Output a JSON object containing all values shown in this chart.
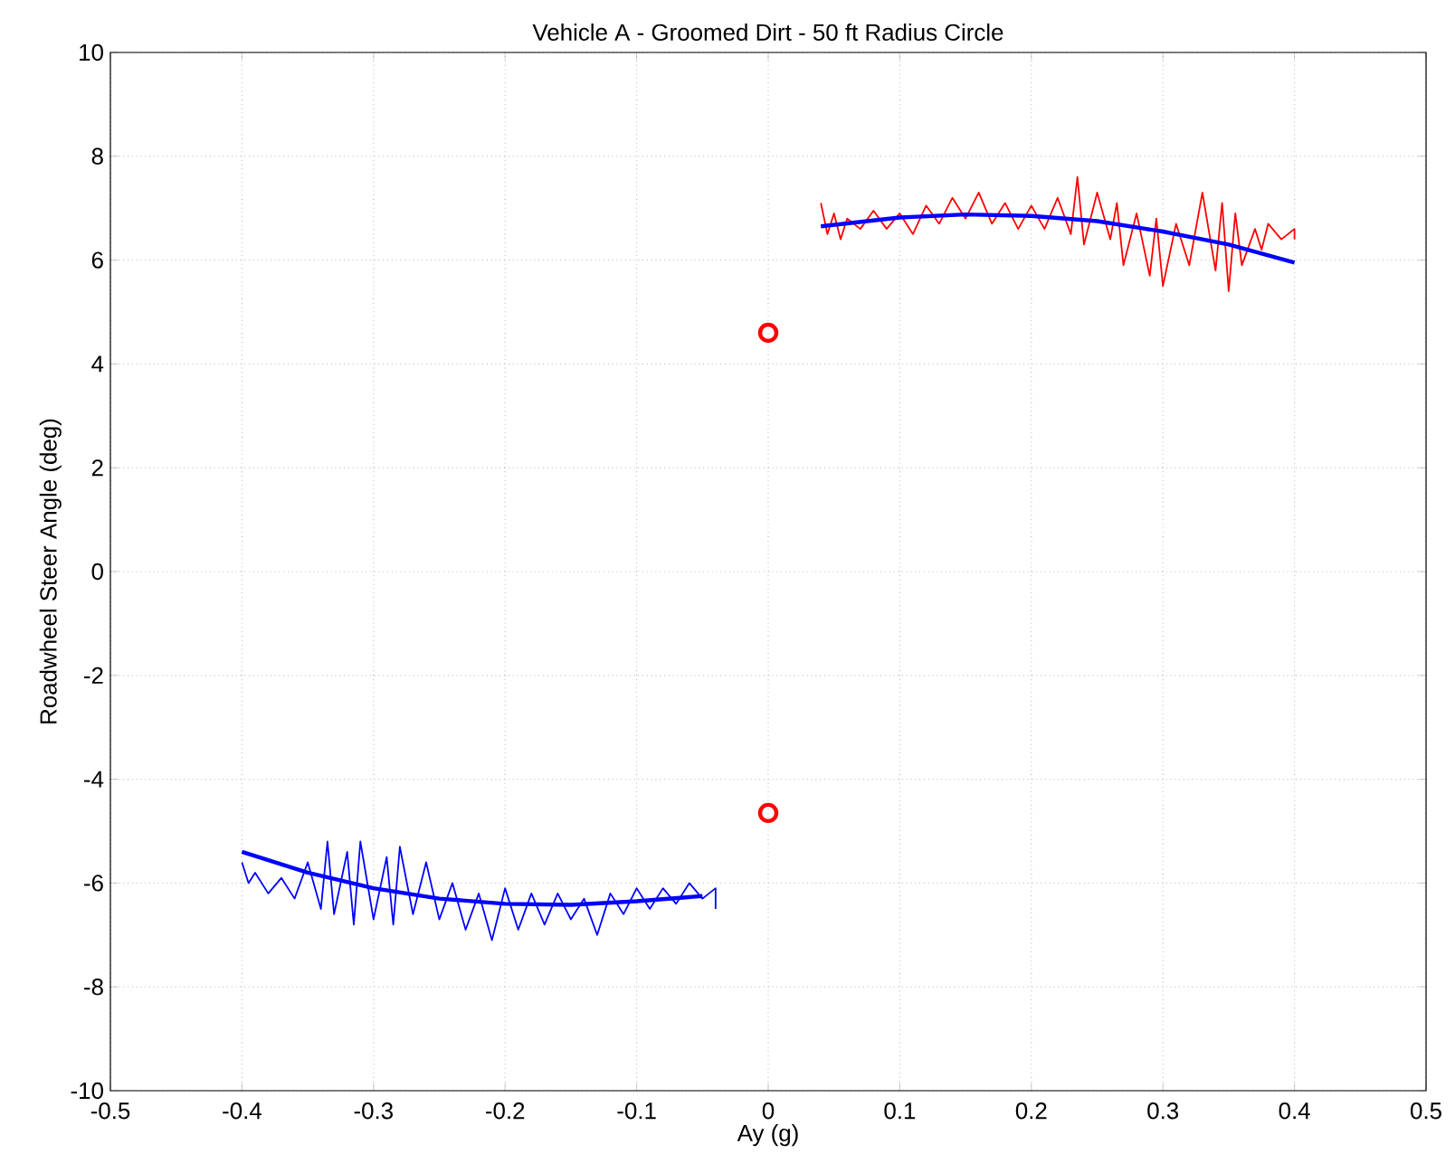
{
  "chart_data": {
    "type": "line",
    "title": "Vehicle A - Groomed Dirt - 50 ft Radius Circle",
    "xlabel": "Ay (g)",
    "ylabel": "Roadwheel Steer Angle (deg)",
    "xlim": [
      -0.5,
      0.5
    ],
    "ylim": [
      -10,
      10
    ],
    "xticks": [
      -0.5,
      -0.4,
      -0.3,
      -0.2,
      -0.1,
      0,
      0.1,
      0.2,
      0.3,
      0.4,
      0.5
    ],
    "yticks": [
      -10,
      -8,
      -6,
      -4,
      -2,
      0,
      2,
      4,
      6,
      8,
      10
    ],
    "grid": true,
    "series": [
      {
        "color": "#ff0000",
        "x": [
          0.04,
          0.045,
          0.05,
          0.055,
          0.06,
          0.07,
          0.08,
          0.09,
          0.1,
          0.11,
          0.12,
          0.13,
          0.14,
          0.15,
          0.16,
          0.17,
          0.18,
          0.19,
          0.2,
          0.21,
          0.22,
          0.23,
          0.235,
          0.24,
          0.25,
          0.26,
          0.265,
          0.27,
          0.28,
          0.29,
          0.295,
          0.3,
          0.31,
          0.32,
          0.33,
          0.34,
          0.345,
          0.35,
          0.355,
          0.36,
          0.37,
          0.375,
          0.38,
          0.39,
          0.4,
          0.4
        ],
        "values": [
          7.1,
          6.5,
          6.9,
          6.4,
          6.8,
          6.6,
          6.95,
          6.6,
          6.9,
          6.5,
          7.05,
          6.7,
          7.2,
          6.8,
          7.3,
          6.7,
          7.1,
          6.6,
          7.05,
          6.6,
          7.2,
          6.5,
          7.6,
          6.3,
          7.3,
          6.4,
          7.1,
          5.9,
          6.9,
          5.7,
          6.8,
          5.5,
          6.7,
          5.9,
          7.3,
          5.8,
          7.1,
          5.4,
          6.9,
          5.9,
          6.6,
          6.2,
          6.7,
          6.4,
          6.6,
          6.4
        ]
      },
      {
        "color": "#0000ff",
        "x": [
          -0.4,
          -0.395,
          -0.39,
          -0.38,
          -0.37,
          -0.36,
          -0.35,
          -0.34,
          -0.335,
          -0.33,
          -0.32,
          -0.315,
          -0.31,
          -0.3,
          -0.29,
          -0.285,
          -0.28,
          -0.27,
          -0.26,
          -0.25,
          -0.24,
          -0.23,
          -0.22,
          -0.21,
          -0.2,
          -0.19,
          -0.18,
          -0.17,
          -0.16,
          -0.15,
          -0.14,
          -0.13,
          -0.12,
          -0.11,
          -0.1,
          -0.09,
          -0.08,
          -0.07,
          -0.06,
          -0.05,
          -0.04,
          -0.04
        ],
        "values": [
          -5.6,
          -6.0,
          -5.8,
          -6.2,
          -5.9,
          -6.3,
          -5.6,
          -6.5,
          -5.2,
          -6.6,
          -5.4,
          -6.8,
          -5.2,
          -6.7,
          -5.5,
          -6.8,
          -5.3,
          -6.6,
          -5.6,
          -6.7,
          -6.0,
          -6.9,
          -6.2,
          -7.1,
          -6.1,
          -6.9,
          -6.2,
          -6.8,
          -6.2,
          -6.7,
          -6.3,
          -7.0,
          -6.2,
          -6.6,
          -6.1,
          -6.5,
          -6.1,
          -6.4,
          -6.0,
          -6.3,
          -6.1,
          -6.5
        ]
      },
      {
        "color": "#0000ff",
        "x": [
          0.04,
          0.1,
          0.15,
          0.2,
          0.25,
          0.3,
          0.35,
          0.4
        ],
        "values": [
          6.65,
          6.82,
          6.88,
          6.85,
          6.75,
          6.55,
          6.3,
          5.95
        ]
      },
      {
        "color": "#0000ff",
        "x": [
          -0.4,
          -0.35,
          -0.3,
          -0.25,
          -0.2,
          -0.15,
          -0.1,
          -0.05
        ],
        "values": [
          -5.4,
          -5.8,
          -6.1,
          -6.3,
          -6.4,
          -6.42,
          -6.35,
          -6.25
        ]
      },
      {
        "type": "scatter",
        "color": "#ff0000",
        "marker": "circle",
        "x": [
          0,
          0
        ],
        "values": [
          4.6,
          -4.65
        ]
      }
    ]
  }
}
